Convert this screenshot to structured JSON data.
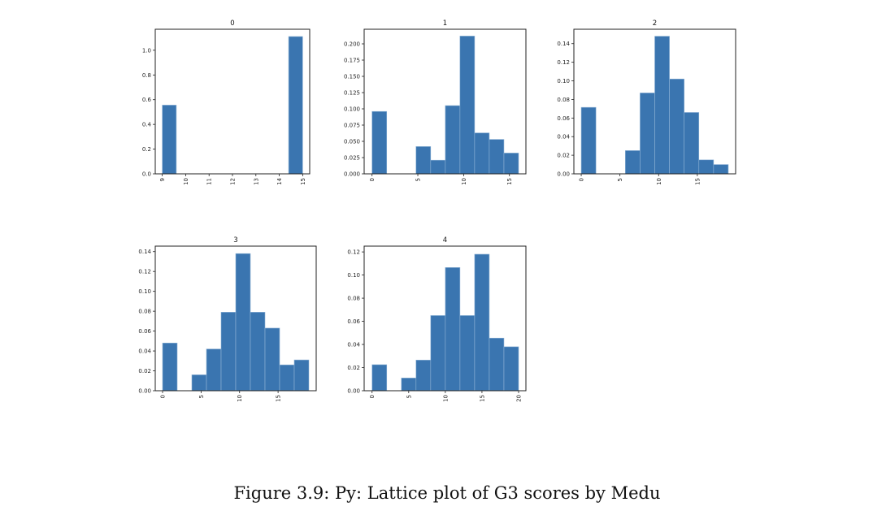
{
  "caption": "Figure 3.9: Py: Lattice plot of G3 scores by Medu",
  "chart_data": [
    {
      "type": "bar",
      "title": "0",
      "bin_edges_start": 9,
      "bin_width": 0.6,
      "values": [
        0.556,
        0,
        0,
        0,
        0,
        0,
        0,
        0,
        0,
        1.111
      ],
      "xlim": [
        8.7,
        15.3
      ],
      "ylim": [
        0,
        1.17
      ],
      "xticks": [
        9,
        10,
        11,
        12,
        13,
        14,
        15
      ],
      "yticks": [
        0.0,
        0.2,
        0.4,
        0.6,
        0.8,
        1.0
      ],
      "ytick_decimals": 1,
      "color": "#3a75b0"
    },
    {
      "type": "bar",
      "title": "1",
      "bin_edges_start": 0,
      "bin_width": 1.6,
      "values": [
        0.096,
        0,
        0,
        0.042,
        0.021,
        0.105,
        0.212,
        0.063,
        0.053,
        0.032
      ],
      "xlim": [
        -0.86,
        16.8
      ],
      "ylim": [
        0,
        0.2225
      ],
      "xticks": [
        0,
        5,
        10,
        15
      ],
      "yticks": [
        0.0,
        0.025,
        0.05,
        0.075,
        0.1,
        0.125,
        0.15,
        0.175,
        0.2
      ],
      "ytick_decimals": 3,
      "color": "#3a75b0"
    },
    {
      "type": "bar",
      "title": "2",
      "bin_edges_start": 0,
      "bin_width": 1.9,
      "values": [
        0.0715,
        0,
        0,
        0.025,
        0.087,
        0.148,
        0.102,
        0.066,
        0.015,
        0.01
      ],
      "xlim": [
        -0.95,
        19.95
      ],
      "ylim": [
        0,
        0.1555
      ],
      "xticks": [
        0,
        5,
        10,
        15
      ],
      "yticks": [
        0.0,
        0.02,
        0.04,
        0.06,
        0.08,
        0.1,
        0.12,
        0.14
      ],
      "ytick_decimals": 2,
      "color": "#3a75b0"
    },
    {
      "type": "bar",
      "title": "3",
      "bin_edges_start": 0,
      "bin_width": 1.9,
      "values": [
        0.048,
        0,
        0.016,
        0.042,
        0.079,
        0.138,
        0.079,
        0.063,
        0.026,
        0.031
      ],
      "xlim": [
        -0.95,
        19.95
      ],
      "ylim": [
        0,
        0.1455
      ],
      "xticks": [
        0,
        5,
        10,
        15
      ],
      "yticks": [
        0.0,
        0.02,
        0.04,
        0.06,
        0.08,
        0.1,
        0.12,
        0.14
      ],
      "ytick_decimals": 2,
      "color": "#3a75b0"
    },
    {
      "type": "bar",
      "title": "4",
      "bin_edges_start": 0,
      "bin_width": 2,
      "values": [
        0.0225,
        0,
        0.011,
        0.0265,
        0.065,
        0.1065,
        0.065,
        0.118,
        0.0455,
        0.038
      ],
      "xlim": [
        -1.08,
        21.0
      ],
      "ylim": [
        0,
        0.125
      ],
      "xticks": [
        0,
        5,
        10,
        15,
        20
      ],
      "yticks": [
        0.0,
        0.02,
        0.04,
        0.06,
        0.08,
        0.1,
        0.12
      ],
      "ytick_decimals": 2,
      "color": "#3a75b0"
    }
  ]
}
